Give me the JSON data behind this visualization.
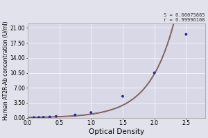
{
  "title": "",
  "xlabel": "Optical Density",
  "ylabel": "Human AT2R-Ab concentration (U/ml)",
  "annotation_line1": "S = 0.00075885",
  "annotation_line2": "r = 0.99996108",
  "x_data": [
    0.1,
    0.18,
    0.25,
    0.35,
    0.45,
    0.75,
    1.0,
    1.5,
    2.0,
    2.5
  ],
  "y_data": [
    0.05,
    0.07,
    0.1,
    0.18,
    0.3,
    0.65,
    1.2,
    5.0,
    10.5,
    19.5
  ],
  "xlim": [
    0.0,
    2.8
  ],
  "ylim": [
    0.0,
    22.0
  ],
  "xticks": [
    0.0,
    0.5,
    1.0,
    1.5,
    2.0,
    2.5
  ],
  "yticks": [
    0.0,
    3.5,
    7.0,
    10.5,
    14.0,
    17.5,
    21.0
  ],
  "ytick_labels": [
    "0.00",
    "3.50",
    "7.00",
    "10.50",
    "14.00",
    "17.50",
    "21.00"
  ],
  "dot_color": "#2b2b9a",
  "curve_color_dark": "#4a4a4a",
  "curve_color_light": "#cc7777",
  "bg_color": "#e2e2ec",
  "plot_bg_color": "#d8d8e6",
  "grid_color": "#f0f0f8",
  "annotation_fontsize": 5.0,
  "xlabel_fontsize": 7.5,
  "ylabel_fontsize": 5.5,
  "tick_fontsize": 5.5
}
